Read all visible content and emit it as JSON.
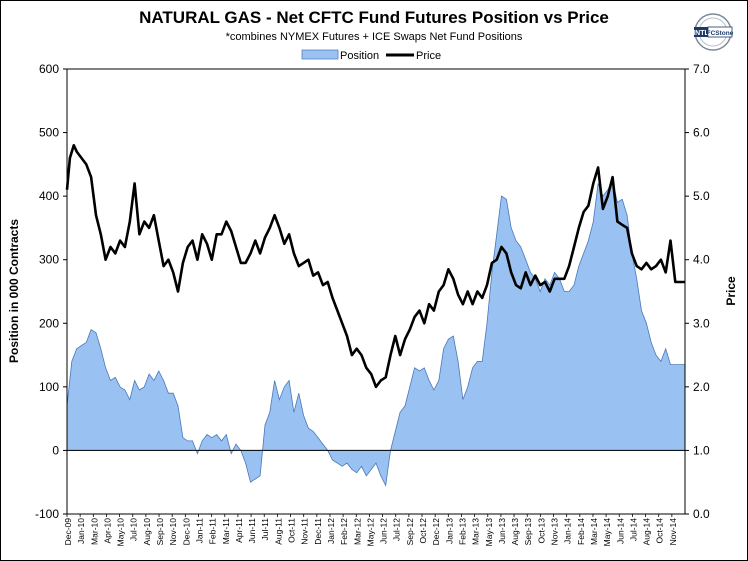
{
  "chart_data": {
    "type": "area+line",
    "title": "NATURAL GAS - Net CFTC Fund Futures Position vs Price",
    "subtitle": "*combines NYMEX Futures + ICE Swaps  Net Fund Positions",
    "legend": [
      "Position",
      "Price"
    ],
    "legend_placement": "top-center",
    "ylabel_left": "Position in 000 Contracts",
    "ylabel_right": "Price",
    "ylim_left": [
      -100,
      600
    ],
    "ylim_right": [
      0.0,
      7.0
    ],
    "yticks_left": [
      "600",
      "500",
      "400",
      "300",
      "200",
      "100",
      "0",
      "-100"
    ],
    "yticks_right": [
      "7.0",
      "6.0",
      "5.0",
      "4.0",
      "3.0",
      "2.0",
      "1.0",
      "0.0"
    ],
    "x_categories": [
      "Dec-09",
      "Jan-10",
      "Mar-10",
      "Apr-10",
      "May-10",
      "Jul-10",
      "Aug-10",
      "Sep-10",
      "Nov-10",
      "Dec-10",
      "Jan-11",
      "Feb-11",
      "Mar-11",
      "Apr-11",
      "Jun-11",
      "Jul-11",
      "Aug-11",
      "Oct-11",
      "Nov-11",
      "Dec-11",
      "Jan-12",
      "Feb-12",
      "Mar-12",
      "May-12",
      "Jun-12",
      "Jul-12",
      "Sep-12",
      "Oct-12",
      "Dec-12",
      "Jan-13",
      "Feb-13",
      "Mar-13",
      "May-13",
      "Jun-13",
      "Aug-13",
      "Sep-13",
      "Oct-13",
      "Nov-13",
      "Jan-14",
      "Feb-14",
      "Mar-14",
      "May-14",
      "Jun-14",
      "Jul-14",
      "Aug-14",
      "Oct-14",
      "Nov-14"
    ],
    "months_span": 62,
    "series": [
      {
        "name": "Position",
        "kind": "area",
        "color": "#99c2f2",
        "points": [
          [
            0,
            70
          ],
          [
            0.5,
            140
          ],
          [
            1,
            160
          ],
          [
            1.5,
            165
          ],
          [
            2,
            170
          ],
          [
            2.5,
            190
          ],
          [
            3,
            185
          ],
          [
            3.5,
            160
          ],
          [
            4,
            130
          ],
          [
            4.5,
            110
          ],
          [
            5,
            115
          ],
          [
            5.5,
            100
          ],
          [
            6,
            95
          ],
          [
            6.5,
            80
          ],
          [
            7,
            110
          ],
          [
            7.5,
            95
          ],
          [
            8,
            100
          ],
          [
            8.5,
            120
          ],
          [
            9,
            110
          ],
          [
            9.5,
            125
          ],
          [
            10,
            110
          ],
          [
            10.5,
            90
          ],
          [
            11,
            90
          ],
          [
            11.5,
            70
          ],
          [
            12,
            20
          ],
          [
            12.5,
            15
          ],
          [
            13,
            15
          ],
          [
            13.5,
            -5
          ],
          [
            14,
            15
          ],
          [
            14.5,
            25
          ],
          [
            15,
            20
          ],
          [
            15.5,
            25
          ],
          [
            16,
            15
          ],
          [
            16.5,
            25
          ],
          [
            17,
            -5
          ],
          [
            17.5,
            10
          ],
          [
            18,
            0
          ],
          [
            18.5,
            -20
          ],
          [
            19,
            -50
          ],
          [
            19.5,
            -45
          ],
          [
            20,
            -40
          ],
          [
            20.5,
            40
          ],
          [
            21,
            60
          ],
          [
            21.5,
            110
          ],
          [
            22,
            80
          ],
          [
            22.5,
            100
          ],
          [
            23,
            110
          ],
          [
            23.5,
            60
          ],
          [
            24,
            90
          ],
          [
            24.5,
            55
          ],
          [
            25,
            35
          ],
          [
            25.5,
            30
          ],
          [
            26,
            20
          ],
          [
            26.5,
            10
          ],
          [
            27,
            0
          ],
          [
            27.5,
            -15
          ],
          [
            28,
            -20
          ],
          [
            28.5,
            -25
          ],
          [
            29,
            -20
          ],
          [
            29.5,
            -30
          ],
          [
            30,
            -35
          ],
          [
            30.5,
            -25
          ],
          [
            31,
            -40
          ],
          [
            31.5,
            -30
          ],
          [
            32,
            -20
          ],
          [
            32.5,
            -40
          ],
          [
            33,
            -55
          ],
          [
            33.5,
            0
          ],
          [
            34,
            30
          ],
          [
            34.5,
            60
          ],
          [
            35,
            70
          ],
          [
            35.5,
            100
          ],
          [
            36,
            130
          ],
          [
            36.5,
            125
          ],
          [
            37,
            130
          ],
          [
            37.5,
            110
          ],
          [
            38,
            95
          ],
          [
            38.5,
            110
          ],
          [
            39,
            160
          ],
          [
            39.5,
            175
          ],
          [
            40,
            180
          ],
          [
            40.5,
            140
          ],
          [
            41,
            80
          ],
          [
            41.5,
            100
          ],
          [
            42,
            130
          ],
          [
            42.5,
            140
          ],
          [
            43,
            140
          ],
          [
            43.5,
            200
          ],
          [
            44,
            280
          ],
          [
            44.5,
            340
          ],
          [
            45,
            400
          ],
          [
            45.5,
            395
          ],
          [
            46,
            350
          ],
          [
            46.5,
            330
          ],
          [
            47,
            320
          ],
          [
            47.5,
            300
          ],
          [
            48,
            280
          ],
          [
            48.5,
            270
          ],
          [
            49,
            250
          ],
          [
            49.5,
            270
          ],
          [
            50,
            260
          ],
          [
            50.5,
            280
          ],
          [
            51,
            270
          ],
          [
            51.5,
            250
          ],
          [
            52,
            250
          ],
          [
            52.5,
            260
          ],
          [
            53,
            290
          ],
          [
            53.5,
            310
          ],
          [
            54,
            330
          ],
          [
            54.5,
            360
          ],
          [
            55,
            420
          ],
          [
            55.5,
            400
          ],
          [
            56,
            410
          ],
          [
            56.5,
            425
          ],
          [
            57,
            390
          ],
          [
            57.5,
            395
          ],
          [
            58,
            370
          ],
          [
            58.5,
            310
          ],
          [
            59,
            270
          ],
          [
            59.5,
            220
          ],
          [
            60,
            200
          ],
          [
            60.5,
            170
          ],
          [
            61,
            150
          ],
          [
            61.5,
            140
          ],
          [
            62,
            160
          ],
          [
            62.5,
            135
          ],
          [
            63,
            135
          ],
          [
            63.5,
            135
          ],
          [
            64,
            135
          ]
        ]
      },
      {
        "name": "Price",
        "kind": "line",
        "color": "#000000",
        "points": [
          [
            0,
            5.1
          ],
          [
            0.3,
            5.6
          ],
          [
            0.7,
            5.8
          ],
          [
            1,
            5.7
          ],
          [
            1.5,
            5.6
          ],
          [
            2,
            5.5
          ],
          [
            2.5,
            5.3
          ],
          [
            3,
            4.7
          ],
          [
            3.5,
            4.4
          ],
          [
            4,
            4.0
          ],
          [
            4.5,
            4.2
          ],
          [
            5,
            4.1
          ],
          [
            5.5,
            4.3
          ],
          [
            6,
            4.2
          ],
          [
            6.5,
            4.6
          ],
          [
            7,
            5.2
          ],
          [
            7.5,
            4.4
          ],
          [
            8,
            4.6
          ],
          [
            8.5,
            4.5
          ],
          [
            9,
            4.7
          ],
          [
            9.5,
            4.3
          ],
          [
            10,
            3.9
          ],
          [
            10.5,
            4.0
          ],
          [
            11,
            3.8
          ],
          [
            11.5,
            3.5
          ],
          [
            12,
            3.95
          ],
          [
            12.5,
            4.2
          ],
          [
            13,
            4.3
          ],
          [
            13.5,
            4.0
          ],
          [
            14,
            4.4
          ],
          [
            14.5,
            4.25
          ],
          [
            15,
            4.0
          ],
          [
            15.5,
            4.4
          ],
          [
            16,
            4.4
          ],
          [
            16.5,
            4.6
          ],
          [
            17,
            4.45
          ],
          [
            17.5,
            4.2
          ],
          [
            18,
            3.95
          ],
          [
            18.5,
            3.95
          ],
          [
            19,
            4.1
          ],
          [
            19.5,
            4.3
          ],
          [
            20,
            4.1
          ],
          [
            20.5,
            4.35
          ],
          [
            21,
            4.5
          ],
          [
            21.5,
            4.7
          ],
          [
            22,
            4.5
          ],
          [
            22.5,
            4.25
          ],
          [
            23,
            4.4
          ],
          [
            23.5,
            4.1
          ],
          [
            24,
            3.9
          ],
          [
            24.5,
            3.95
          ],
          [
            25,
            4.0
          ],
          [
            25.5,
            3.75
          ],
          [
            26,
            3.8
          ],
          [
            26.5,
            3.6
          ],
          [
            27,
            3.65
          ],
          [
            27.5,
            3.4
          ],
          [
            28,
            3.2
          ],
          [
            28.5,
            3.0
          ],
          [
            29,
            2.8
          ],
          [
            29.5,
            2.5
          ],
          [
            30,
            2.6
          ],
          [
            30.5,
            2.5
          ],
          [
            31,
            2.3
          ],
          [
            31.5,
            2.2
          ],
          [
            32,
            2.0
          ],
          [
            32.5,
            2.1
          ],
          [
            33,
            2.15
          ],
          [
            33.5,
            2.5
          ],
          [
            34,
            2.8
          ],
          [
            34.5,
            2.5
          ],
          [
            35,
            2.75
          ],
          [
            35.5,
            2.9
          ],
          [
            36,
            3.1
          ],
          [
            36.5,
            3.2
          ],
          [
            37,
            3.0
          ],
          [
            37.5,
            3.3
          ],
          [
            38,
            3.2
          ],
          [
            38.5,
            3.5
          ],
          [
            39,
            3.6
          ],
          [
            39.5,
            3.85
          ],
          [
            40,
            3.7
          ],
          [
            40.5,
            3.45
          ],
          [
            41,
            3.3
          ],
          [
            41.5,
            3.5
          ],
          [
            42,
            3.3
          ],
          [
            42.5,
            3.5
          ],
          [
            43,
            3.4
          ],
          [
            43.5,
            3.6
          ],
          [
            44,
            3.95
          ],
          [
            44.5,
            4.0
          ],
          [
            45,
            4.2
          ],
          [
            45.5,
            4.1
          ],
          [
            46,
            3.8
          ],
          [
            46.5,
            3.6
          ],
          [
            47,
            3.55
          ],
          [
            47.5,
            3.8
          ],
          [
            48,
            3.6
          ],
          [
            48.5,
            3.75
          ],
          [
            49,
            3.6
          ],
          [
            49.5,
            3.65
          ],
          [
            50,
            3.5
          ],
          [
            50.5,
            3.7
          ],
          [
            51,
            3.7
          ],
          [
            51.5,
            3.7
          ],
          [
            52,
            3.9
          ],
          [
            52.5,
            4.2
          ],
          [
            53,
            4.5
          ],
          [
            53.5,
            4.75
          ],
          [
            54,
            4.85
          ],
          [
            54.5,
            5.2
          ],
          [
            55,
            5.45
          ],
          [
            55.5,
            4.8
          ],
          [
            56,
            5.0
          ],
          [
            56.5,
            5.3
          ],
          [
            57,
            4.6
          ],
          [
            57.5,
            4.55
          ],
          [
            58,
            4.5
          ],
          [
            58.5,
            4.1
          ],
          [
            59,
            3.9
          ],
          [
            59.5,
            3.85
          ],
          [
            60,
            3.95
          ],
          [
            60.5,
            3.85
          ],
          [
            61,
            3.9
          ],
          [
            61.5,
            4.0
          ],
          [
            62,
            3.8
          ],
          [
            62.5,
            4.3
          ],
          [
            63,
            3.65
          ],
          [
            63.5,
            3.65
          ],
          [
            64,
            3.65
          ]
        ]
      }
    ]
  },
  "logo": {
    "line1": "INTL",
    "line2": "FCStone"
  }
}
